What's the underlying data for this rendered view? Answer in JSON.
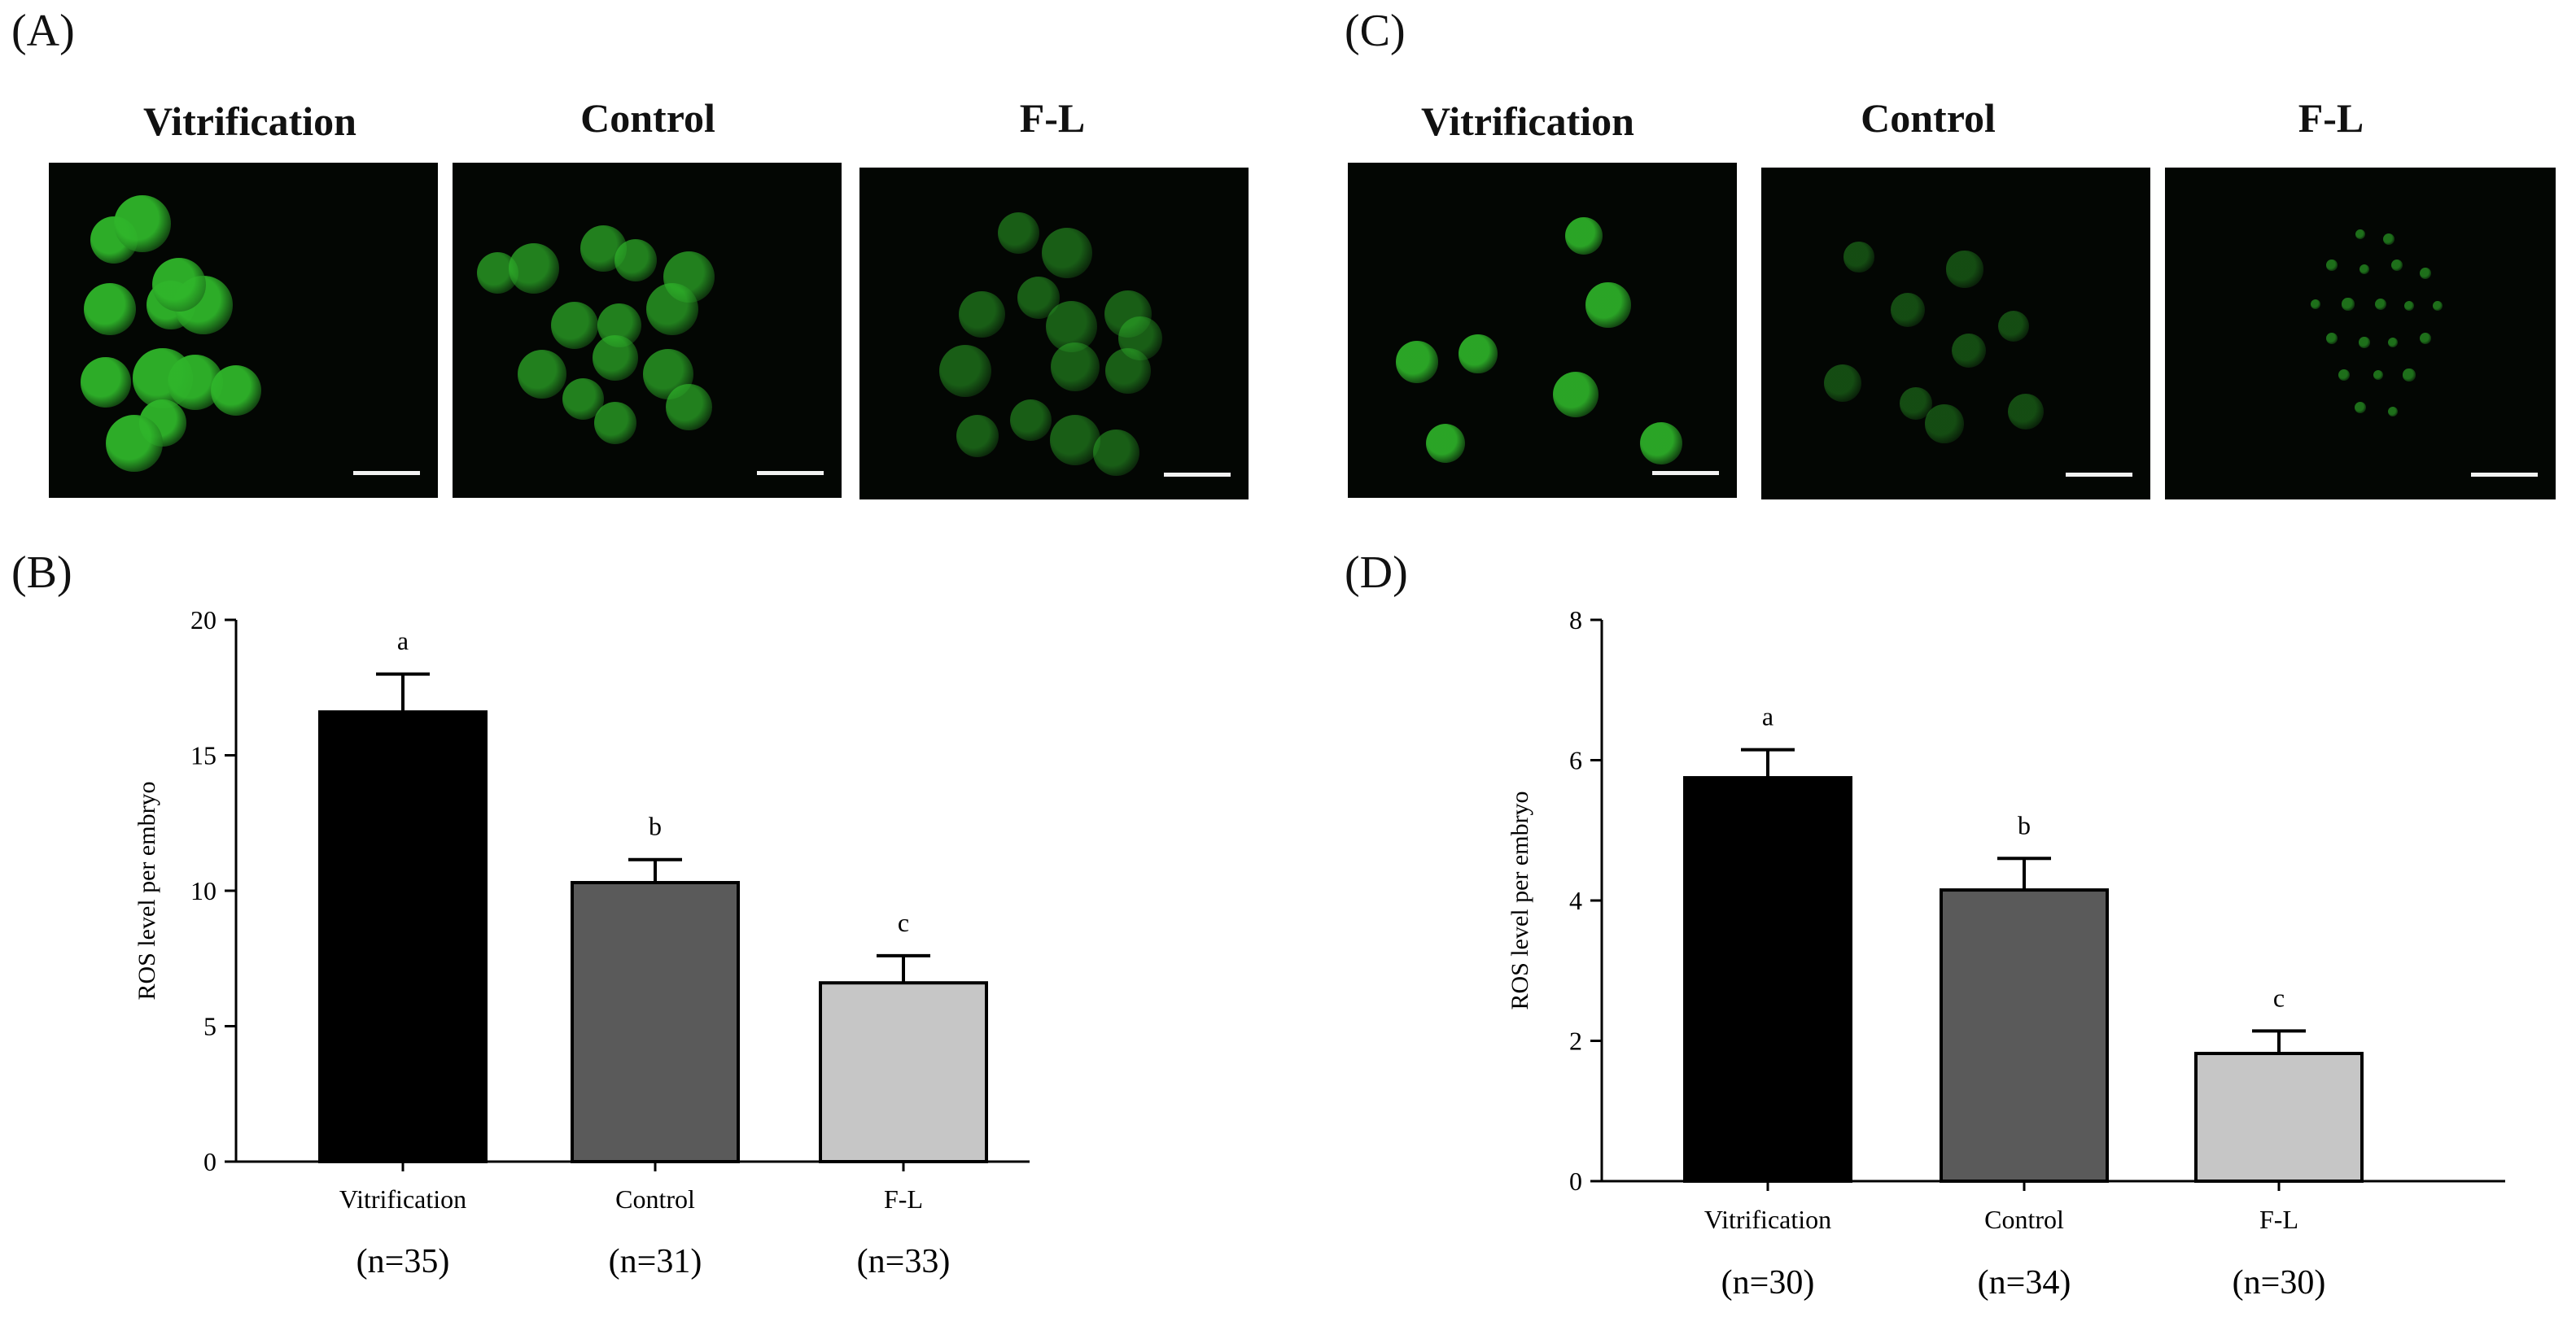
{
  "panels": {
    "a": "(A)",
    "b": "(B)",
    "c": "(C)",
    "d": "(D)"
  },
  "image_titles": {
    "a": [
      "Vitrification",
      "Control",
      "F-L"
    ],
    "c": [
      "Vitrification",
      "Control",
      "F-L"
    ]
  },
  "colors": {
    "fluorescence": "#2fb52a",
    "vitrification_bar": "#000000",
    "control_bar": "#5a5a5a",
    "fl_bar": "#c6c6c6"
  },
  "chart_data": [
    {
      "type": "bar",
      "panel": "(B)",
      "categories": [
        "Vitrification",
        "Control",
        "F-L"
      ],
      "values": [
        16.6,
        10.3,
        6.6
      ],
      "errors": [
        1.4,
        0.85,
        1.0
      ],
      "significance": [
        "a",
        "b",
        "c"
      ],
      "sample_sizes": [
        "(n=35)",
        "(n=31)",
        "(n=33)"
      ],
      "ylabel": "ROS level per embryo",
      "ylim": [
        0,
        20
      ],
      "yticks": [
        0,
        5,
        10,
        15,
        20
      ]
    },
    {
      "type": "bar",
      "panel": "(D)",
      "categories": [
        "Vitrification",
        "Control",
        "F-L"
      ],
      "values": [
        5.75,
        4.15,
        1.82
      ],
      "errors": [
        0.4,
        0.45,
        0.32
      ],
      "significance": [
        "a",
        "b",
        "c"
      ],
      "sample_sizes": [
        "(n=30)",
        "(n=34)",
        "(n=30)"
      ],
      "ylabel": "ROS level per embryo",
      "ylim": [
        0,
        8
      ],
      "yticks": [
        0,
        2,
        4,
        6,
        8
      ]
    }
  ]
}
